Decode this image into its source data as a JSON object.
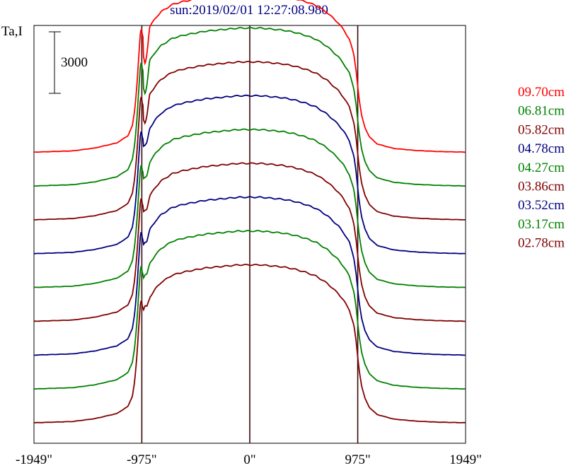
{
  "chart_data": {
    "type": "line",
    "title": "sun:2019/02/01 12:27:08.980",
    "ylabel": "Ta,I",
    "scale_bar_label": "3000",
    "scale_bar_value": 3000,
    "xlim": [
      -1949,
      1949
    ],
    "x_ticks": [
      -1949,
      -975,
      0,
      975,
      1949
    ],
    "x_tick_labels": [
      "-1949\"",
      "-975\"",
      "0\"",
      "975\"",
      "1949\""
    ],
    "vertical_markers": [
      -975,
      0,
      975
    ],
    "vertical_marker_color": "#3a0a0a",
    "profile": {
      "x": [
        -1949,
        -1600,
        -1400,
        -1200,
        -1100,
        -1060,
        -1040,
        -1020,
        -1000,
        -990,
        -980,
        -972,
        -960,
        -945,
        -930,
        -900,
        -850,
        -800,
        -700,
        -600,
        -500,
        -400,
        -300,
        -200,
        -100,
        0,
        100,
        200,
        300,
        400,
        500,
        600,
        700,
        800,
        850,
        900,
        940,
        960,
        975,
        990,
        1010,
        1040,
        1080,
        1150,
        1300,
        1500,
        1700,
        1949
      ],
      "y": [
        0,
        60,
        200,
        450,
        800,
        1300,
        2000,
        3200,
        4900,
        5700,
        6050,
        5750,
        5500,
        5700,
        5650,
        6150,
        6550,
        6850,
        7200,
        7350,
        7450,
        7550,
        7600,
        7650,
        7700,
        7700,
        7700,
        7650,
        7600,
        7500,
        7350,
        7150,
        6800,
        6300,
        5950,
        5500,
        4750,
        4000,
        3200,
        2500,
        1800,
        1200,
        750,
        400,
        180,
        80,
        30,
        0
      ]
    },
    "series": [
      {
        "name": "09.70cm",
        "color": "#ff0000",
        "offset": 8,
        "dip": 1.0
      },
      {
        "name": "06.81cm",
        "color": "#008000",
        "offset": 7,
        "dip": 0.85
      },
      {
        "name": "05.82cm",
        "color": "#800000",
        "offset": 6,
        "dip": 0.7
      },
      {
        "name": "04.78cm",
        "color": "#000080",
        "offset": 5,
        "dip": 0.3
      },
      {
        "name": "04.27cm",
        "color": "#008000",
        "offset": 4,
        "dip": 0.25
      },
      {
        "name": "03.86cm",
        "color": "#800000",
        "offset": 3,
        "dip": 0.2
      },
      {
        "name": "03.52cm",
        "color": "#000080",
        "offset": 2,
        "dip": 0.12
      },
      {
        "name": "03.17cm",
        "color": "#008000",
        "offset": 1,
        "dip": 0.08
      },
      {
        "name": "02.78cm",
        "color": "#800000",
        "offset": 0,
        "dip": 0.0
      }
    ],
    "offset_step": 1650,
    "grid": false
  }
}
